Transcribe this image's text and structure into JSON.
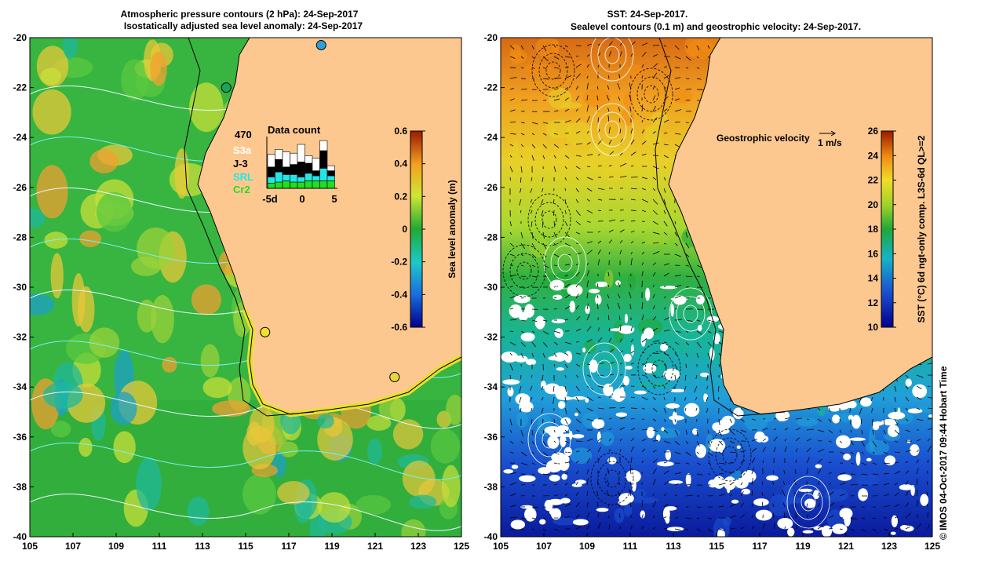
{
  "left_panel": {
    "title_line1": "Atmospheric pressure contours (2 hPa): 24-Sep-2017",
    "title_line2": "Isostatically adjusted sea level anomaly: 24-Sep-2017",
    "lon_ticks": [
      "105",
      "107",
      "109",
      "111",
      "113",
      "115",
      "117",
      "119",
      "121",
      "123",
      "125"
    ],
    "lat_ticks": [
      "-20",
      "-22",
      "-24",
      "-26",
      "-28",
      "-30",
      "-32",
      "-34",
      "-36",
      "-38",
      "-40"
    ],
    "colorbar": {
      "label": "Sea level anomaly (m)",
      "ticks": [
        "0.6",
        "0.4",
        "0.2",
        "0",
        "-0.2",
        "-0.4",
        "-0.6"
      ],
      "range": [
        -0.6,
        0.6
      ]
    },
    "inset": {
      "title": "Data count",
      "count": "470",
      "legend": [
        {
          "name": "S3a",
          "color": "#ffffff"
        },
        {
          "name": "J-3",
          "color": "#000000"
        },
        {
          "name": "SRL",
          "color": "#22e6e6"
        },
        {
          "name": "Cr2",
          "color": "#22dd22"
        }
      ],
      "x_ticks": [
        "-5d",
        "0",
        "5"
      ]
    },
    "tide_gauges": [
      {
        "lon": 118.5,
        "lat": -20.3,
        "color": "#2e9fd6"
      },
      {
        "lon": 114.1,
        "lat": -22.0,
        "color": "#1aa55a"
      },
      {
        "lon": 115.9,
        "lat": -31.8,
        "color": "#f0e22a"
      },
      {
        "lon": 121.9,
        "lat": -33.6,
        "color": "#e8d83a"
      }
    ]
  },
  "right_panel": {
    "title_line1": "SST: 24-Sep-2017.",
    "title_line2": "Sealevel contours (0.1 m) and geostrophic velocity: 24-Sep-2017.",
    "lon_ticks": [
      "105",
      "107",
      "109",
      "111",
      "113",
      "115",
      "117",
      "119",
      "121",
      "123",
      "125"
    ],
    "lat_ticks": [
      "-20",
      "-22",
      "-24",
      "-26",
      "-28",
      "-30",
      "-32",
      "-34",
      "-36",
      "-38",
      "-40"
    ],
    "colorbar": {
      "label": "SST (°C) 6d ngt-only comp. L3S-6d QL>=2",
      "ticks": [
        "26",
        "24",
        "22",
        "20",
        "18",
        "16",
        "14",
        "12",
        "10"
      ],
      "range": [
        10,
        26
      ]
    },
    "velocity_key": {
      "label": "Geostrophic velocity",
      "scale": "1 m/s"
    }
  },
  "credit": "© IMOS 04-Oct-2017 09:44 Hobart Time"
}
